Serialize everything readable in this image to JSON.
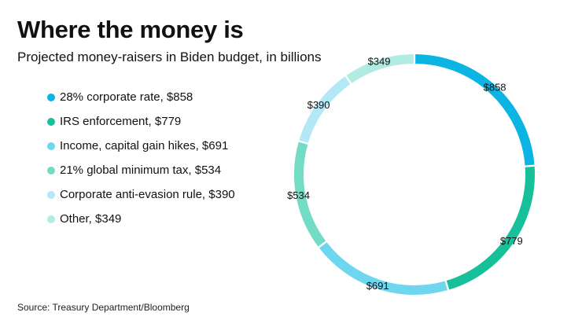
{
  "title": "Where the money is",
  "subtitle": "Projected money-raisers in Biden budget, in billions",
  "source": "Source: Treasury Department/Bloomberg",
  "chart_data": {
    "type": "pie",
    "style": "donut",
    "legend_position": "left",
    "slices": [
      {
        "label": "28% corporate rate",
        "value": 858,
        "display": "$858",
        "legend": "28% corporate rate, $858",
        "color": "#0bb4e2"
      },
      {
        "label": "IRS enforcement",
        "value": 779,
        "display": "$779",
        "legend": "IRS enforcement, $779",
        "color": "#17c09b"
      },
      {
        "label": "Income, capital gain hikes",
        "value": 691,
        "display": "$691",
        "legend": "Income, capital gain hikes, $691",
        "color": "#6ed6ee"
      },
      {
        "label": "21% global minimum tax",
        "value": 534,
        "display": "$534",
        "legend": "21% global minimum tax, $534",
        "color": "#73dcc4"
      },
      {
        "label": "Corporate anti-evasion rule",
        "value": 390,
        "display": "$390",
        "legend": "Corporate anti-evasion rule, $390",
        "color": "#b3e8f7"
      },
      {
        "label": "Other",
        "value": 349,
        "display": "$349",
        "legend": "Other, $349",
        "color": "#b1ebe1"
      }
    ]
  }
}
